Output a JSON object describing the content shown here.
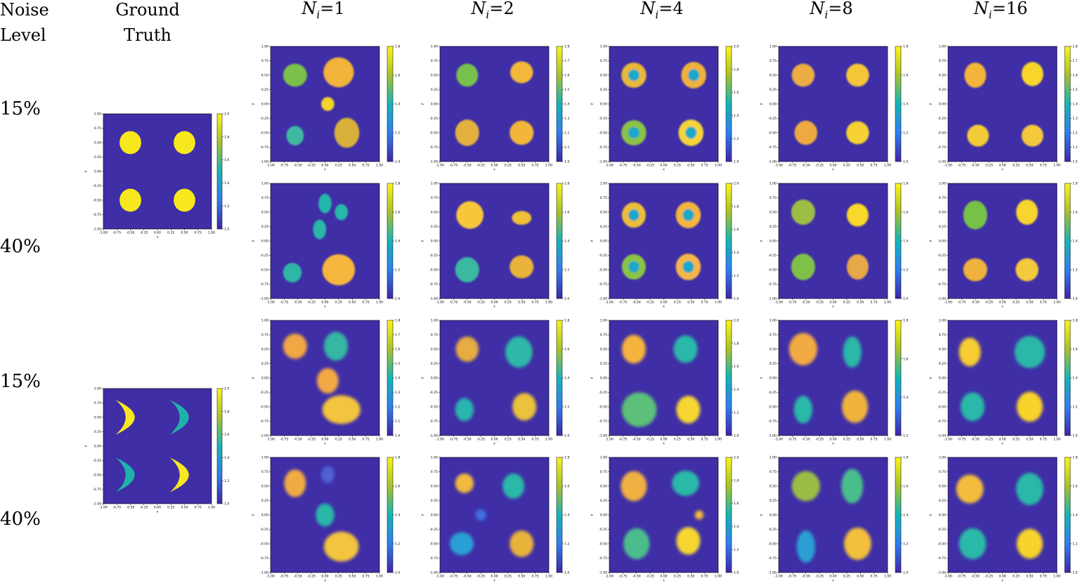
{
  "headers": {
    "noise_level": "Noise Level",
    "ground_truth": "Ground Truth",
    "columns": [
      "1",
      "2",
      "4",
      "8",
      "16"
    ]
  },
  "row_labels": [
    "15%",
    "40%",
    "15%",
    "40%"
  ],
  "colors": {
    "background": "#3f2ea6",
    "yellow": "#f7e81d",
    "teal": "#20b2aa"
  },
  "chart_data": [
    {
      "type": "heatmap",
      "panel": "ground-truth-1",
      "xlim": [
        -1.0,
        1.0
      ],
      "ylim": [
        -1.0,
        1.0
      ],
      "xlabel": "x",
      "ylabel": "y",
      "colorbar": {
        "min": 1.0,
        "max": 2.0,
        "ticks": [
          1.0,
          1.2,
          1.4,
          1.6,
          1.8,
          2.0
        ]
      },
      "shapes": [
        {
          "kind": "disk",
          "cx": -0.5,
          "cy": 0.5,
          "r": 0.2,
          "value": 2.0
        },
        {
          "kind": "disk",
          "cx": 0.5,
          "cy": 0.5,
          "r": 0.2,
          "value": 2.0
        },
        {
          "kind": "disk",
          "cx": -0.5,
          "cy": -0.5,
          "r": 0.2,
          "value": 2.0
        },
        {
          "kind": "disk",
          "cx": 0.5,
          "cy": -0.5,
          "r": 0.2,
          "value": 2.0
        }
      ]
    },
    {
      "type": "heatmap",
      "panel": "ground-truth-2",
      "xlim": [
        -1.0,
        1.0
      ],
      "ylim": [
        -1.0,
        1.0
      ],
      "xlabel": "x",
      "ylabel": "y",
      "colorbar": {
        "min": 1.0,
        "max": 2.0,
        "ticks": [
          1.0,
          1.2,
          1.4,
          1.6,
          1.8,
          2.0
        ]
      },
      "shapes": [
        {
          "kind": "crescent",
          "cx": -0.5,
          "cy": 0.5,
          "value": 2.0
        },
        {
          "kind": "crescent",
          "cx": 0.5,
          "cy": 0.5,
          "value": 1.5
        },
        {
          "kind": "crescent",
          "cx": -0.5,
          "cy": -0.5,
          "value": 1.5
        },
        {
          "kind": "crescent",
          "cx": 0.5,
          "cy": -0.5,
          "value": 2.0
        }
      ]
    }
  ],
  "reconstructions": {
    "axis_ticks": [
      "-1.00",
      "-0.75",
      "-0.50",
      "-0.25",
      "0.00",
      "0.25",
      "0.50",
      "0.75",
      "1.00"
    ],
    "colorbar_ticks": [
      [
        [
          "1.0",
          "1.2",
          "1.4",
          "1.6",
          "1.8"
        ],
        [
          "1.0",
          "1.1",
          "1.2",
          "1.3",
          "1.4",
          "1.5",
          "1.6",
          "1.7",
          "1.8"
        ],
        [
          "1.0",
          "1.2",
          "1.4",
          "1.6",
          "1.8",
          "2.0"
        ],
        [
          "1.0",
          "1.2",
          "1.4",
          "1.6",
          "1.8"
        ],
        [
          "1.0",
          "1.1",
          "1.2",
          "1.3",
          "1.4",
          "1.5",
          "1.6",
          "1.7",
          "1.8"
        ]
      ],
      [
        [
          "1.0",
          "1.2",
          "1.4",
          "1.6",
          "1.8"
        ],
        [
          "1.0",
          "1.2",
          "1.4",
          "1.6",
          "1.8"
        ],
        [
          "1.0",
          "1.2",
          "1.4",
          "1.6",
          "1.8",
          "2.0"
        ],
        [
          "1.0",
          "1.2",
          "1.4",
          "1.6",
          "1.8"
        ],
        [
          "1.0",
          "1.2",
          "1.4",
          "1.6",
          "1.8"
        ]
      ],
      [
        [
          "1.0",
          "1.1",
          "1.2",
          "1.3",
          "1.4",
          "1.5",
          "1.6",
          "1.7",
          "1.8"
        ],
        [
          "1.0",
          "1.2",
          "1.4",
          "1.6",
          "1.8"
        ],
        [
          "1.0",
          "1.2",
          "1.4",
          "1.6",
          "1.8",
          "2.0"
        ],
        [
          "1.2",
          "1.4",
          "1.6",
          "1.8"
        ],
        [
          "1.0",
          "1.2",
          "1.4",
          "1.6",
          "1.8"
        ]
      ],
      [
        [
          "1.0",
          "1.2",
          "1.4",
          "1.6",
          "1.8"
        ],
        [
          "1.0",
          "1.2",
          "1.4",
          "1.6",
          "1.8"
        ],
        [
          "1.0",
          "1.2",
          "1.4",
          "1.6",
          "1.8",
          "2.0"
        ],
        [
          "1.0",
          "1.2",
          "1.4",
          "1.6",
          "1.8"
        ],
        [
          "1.0",
          "1.2",
          "1.4",
          "1.6",
          "1.8"
        ]
      ]
    ],
    "blobs": [
      [
        [
          [
            -0.55,
            0.5,
            0.22,
            0.2,
            "#7cc04a"
          ],
          [
            0.25,
            0.55,
            0.28,
            0.26,
            "#f2b43a"
          ],
          [
            0.05,
            0.0,
            0.12,
            0.12,
            "#f5d32a"
          ],
          [
            -0.55,
            -0.55,
            0.16,
            0.17,
            "#3fb7a0"
          ],
          [
            0.4,
            -0.5,
            0.23,
            0.26,
            "#d8b13a"
          ]
        ],
        [
          [
            -0.5,
            0.5,
            0.2,
            0.2,
            "#78c14e"
          ],
          [
            0.5,
            0.55,
            0.21,
            0.19,
            "#f3b83a"
          ],
          [
            -0.5,
            -0.5,
            0.22,
            0.23,
            "#e3b13d"
          ],
          [
            0.5,
            -0.5,
            0.22,
            0.21,
            "#f2b63b"
          ]
        ],
        [
          [
            -0.55,
            0.5,
            0.23,
            0.22,
            "#e8b83a"
          ],
          [
            0.55,
            0.5,
            0.23,
            0.23,
            "#f0b13c"
          ],
          [
            -0.55,
            -0.5,
            0.23,
            0.22,
            "#8bc24a"
          ],
          [
            0.5,
            -0.5,
            0.23,
            0.23,
            "#f5d43a"
          ]
        ],
        [
          [
            -0.55,
            0.5,
            0.21,
            0.2,
            "#ecae42"
          ],
          [
            0.45,
            0.5,
            0.21,
            0.2,
            "#f4c73a"
          ],
          [
            -0.5,
            -0.5,
            0.21,
            0.21,
            "#edaa42"
          ],
          [
            0.45,
            -0.5,
            0.21,
            0.2,
            "#f6d236"
          ]
        ],
        [
          [
            -0.5,
            0.5,
            0.2,
            0.22,
            "#f2b43a"
          ],
          [
            0.55,
            0.52,
            0.2,
            0.21,
            "#f8d52c"
          ],
          [
            -0.45,
            -0.55,
            0.2,
            0.19,
            "#f2cc38"
          ],
          [
            0.55,
            -0.55,
            0.2,
            0.19,
            "#f4c93a"
          ]
        ]
      ],
      [
        [
          [
            0.0,
            0.65,
            0.12,
            0.17,
            "#24b7aa"
          ],
          [
            0.3,
            0.5,
            0.12,
            0.14,
            "#26b8aa"
          ],
          [
            -0.1,
            0.2,
            0.12,
            0.17,
            "#2cb7a6"
          ],
          [
            -0.6,
            -0.55,
            0.17,
            0.17,
            "#2eb7a5"
          ],
          [
            0.25,
            -0.5,
            0.3,
            0.27,
            "#f4b63e"
          ]
        ],
        [
          [
            -0.45,
            0.45,
            0.25,
            0.24,
            "#f7c63a"
          ],
          [
            0.5,
            0.4,
            0.18,
            0.12,
            "#f0bf38"
          ],
          [
            -0.5,
            -0.5,
            0.22,
            0.22,
            "#3ab8a0"
          ],
          [
            0.5,
            -0.45,
            0.22,
            0.2,
            "#e9b23a"
          ]
        ],
        [
          [
            -0.55,
            0.45,
            0.22,
            0.22,
            "#ecbd3a"
          ],
          [
            0.45,
            0.45,
            0.23,
            0.23,
            "#f3b53c"
          ],
          [
            -0.55,
            -0.45,
            0.22,
            0.22,
            "#89c449"
          ],
          [
            0.45,
            -0.45,
            0.23,
            0.23,
            "#f3b64a"
          ]
        ],
        [
          [
            -0.55,
            0.5,
            0.22,
            0.22,
            "#9dbd44"
          ],
          [
            0.45,
            0.45,
            0.2,
            0.2,
            "#f8d82b"
          ],
          [
            -0.55,
            -0.45,
            0.22,
            0.23,
            "#7fc04a"
          ],
          [
            0.45,
            -0.45,
            0.2,
            0.22,
            "#e6a84a"
          ]
        ],
        [
          [
            -0.5,
            0.45,
            0.22,
            0.25,
            "#78c14a"
          ],
          [
            0.45,
            0.5,
            0.2,
            0.22,
            "#f7d52e"
          ],
          [
            -0.5,
            -0.5,
            0.22,
            0.2,
            "#efb23e"
          ],
          [
            0.45,
            -0.5,
            0.21,
            0.2,
            "#f5c93c"
          ]
        ]
      ],
      [
        [
          [
            -0.55,
            0.55,
            0.22,
            0.22,
            "#f0a844"
          ],
          [
            0.2,
            0.55,
            0.22,
            0.25,
            "#34b7a4"
          ],
          [
            0.05,
            -0.05,
            0.2,
            0.22,
            "#f3a844"
          ],
          [
            0.3,
            -0.55,
            0.35,
            0.25,
            "#f3c43c"
          ]
        ],
        [
          [
            -0.5,
            0.5,
            0.21,
            0.22,
            "#e7ac42"
          ],
          [
            0.45,
            0.45,
            0.25,
            0.27,
            "#2db8a8"
          ],
          [
            -0.55,
            -0.55,
            0.17,
            0.2,
            "#2ab5ae"
          ],
          [
            0.55,
            -0.5,
            0.22,
            0.24,
            "#eac23a"
          ]
        ],
        [
          [
            -0.55,
            0.5,
            0.22,
            0.25,
            "#f6b43d"
          ],
          [
            0.4,
            0.5,
            0.22,
            0.24,
            "#2cb8aa"
          ],
          [
            -0.45,
            -0.55,
            0.32,
            0.3,
            "#5cc07a"
          ],
          [
            0.45,
            -0.55,
            0.22,
            0.24,
            "#f6d730"
          ]
        ],
        [
          [
            -0.55,
            0.5,
            0.26,
            0.28,
            "#f2ab42"
          ],
          [
            0.35,
            0.45,
            0.17,
            0.27,
            "#2cb8a8"
          ],
          [
            -0.55,
            -0.55,
            0.17,
            0.24,
            "#2cb8a8"
          ],
          [
            0.4,
            -0.5,
            0.24,
            0.28,
            "#f0b33e"
          ]
        ],
        [
          [
            -0.6,
            0.45,
            0.2,
            0.25,
            "#f8cd33"
          ],
          [
            0.5,
            0.45,
            0.28,
            0.28,
            "#2cb8a8"
          ],
          [
            -0.55,
            -0.5,
            0.22,
            0.25,
            "#2cb8a8"
          ],
          [
            0.5,
            -0.5,
            0.24,
            0.26,
            "#f8d32c"
          ]
        ]
      ],
      [
        [
          [
            -0.55,
            0.55,
            0.2,
            0.24,
            "#f0ab44"
          ],
          [
            0.05,
            0.7,
            0.12,
            0.15,
            "#5061d0"
          ],
          [
            0.0,
            0.0,
            0.17,
            0.2,
            "#2cb7a8"
          ],
          [
            0.3,
            -0.55,
            0.32,
            0.26,
            "#f3c43c"
          ]
        ],
        [
          [
            -0.55,
            0.55,
            0.17,
            0.17,
            "#f0bb40"
          ],
          [
            0.35,
            0.5,
            0.2,
            0.22,
            "#2cb8a8"
          ],
          [
            -0.6,
            -0.5,
            0.22,
            0.2,
            "#2c9fd4"
          ],
          [
            0.5,
            -0.5,
            0.22,
            0.23,
            "#e9b23a"
          ],
          [
            -0.25,
            0.0,
            0.1,
            0.1,
            "#3f6ee0"
          ]
        ],
        [
          [
            -0.55,
            0.5,
            0.24,
            0.26,
            "#f0b043"
          ],
          [
            0.4,
            0.55,
            0.25,
            0.22,
            "#2cb8a8"
          ],
          [
            -0.5,
            -0.5,
            0.24,
            0.27,
            "#4cbd8c"
          ],
          [
            0.45,
            -0.45,
            0.22,
            0.24,
            "#f6d730"
          ],
          [
            0.65,
            0.0,
            0.08,
            0.08,
            "#f3b83c"
          ]
        ],
        [
          [
            -0.5,
            0.5,
            0.26,
            0.26,
            "#9bbd44"
          ],
          [
            0.35,
            0.5,
            0.2,
            0.3,
            "#48bd8c"
          ],
          [
            -0.5,
            -0.55,
            0.17,
            0.28,
            "#2c9fd4"
          ],
          [
            0.45,
            -0.5,
            0.25,
            0.28,
            "#f2c03a"
          ]
        ],
        [
          [
            -0.6,
            0.45,
            0.25,
            0.25,
            "#f3bc3c"
          ],
          [
            0.5,
            0.45,
            0.25,
            0.28,
            "#2cb8a8"
          ],
          [
            -0.55,
            -0.5,
            0.25,
            0.27,
            "#2cb8a8"
          ],
          [
            0.5,
            -0.5,
            0.24,
            0.26,
            "#f8d32c"
          ]
        ]
      ]
    ]
  }
}
